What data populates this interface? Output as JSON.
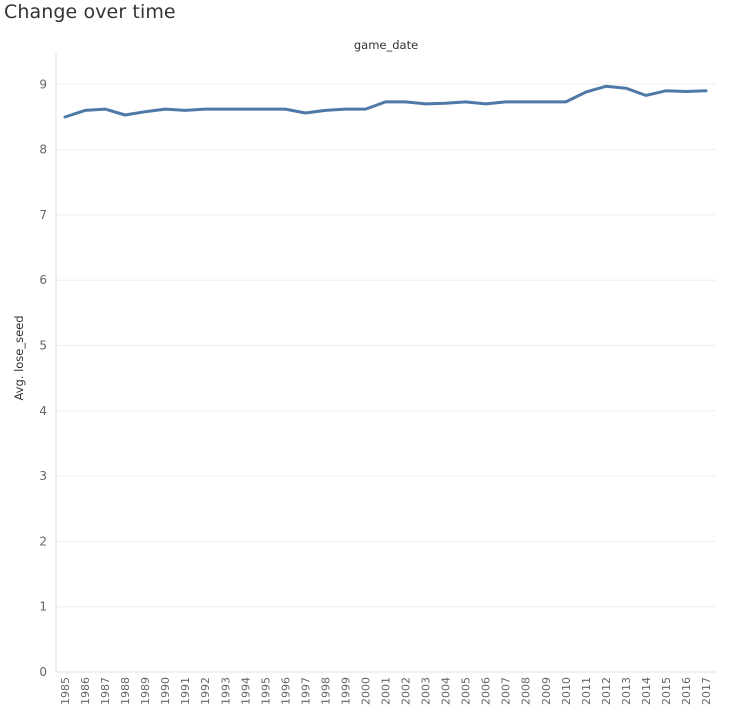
{
  "page": {
    "title": "Change over time"
  },
  "chart_data": {
    "type": "line",
    "title": "Change over time",
    "xlabel": "game_date",
    "ylabel": "Avg. lose_seed",
    "x": [
      1985,
      1986,
      1987,
      1988,
      1989,
      1990,
      1991,
      1992,
      1993,
      1994,
      1995,
      1996,
      1997,
      1998,
      1999,
      2000,
      2001,
      2002,
      2003,
      2004,
      2005,
      2006,
      2007,
      2008,
      2009,
      2010,
      2011,
      2012,
      2013,
      2014,
      2015,
      2016,
      2017
    ],
    "series": [
      {
        "name": "",
        "color": "#4e79a7",
        "values": [
          8.5,
          8.6,
          8.62,
          8.53,
          8.58,
          8.62,
          8.6,
          8.62,
          8.62,
          8.62,
          8.62,
          8.62,
          8.56,
          8.6,
          8.62,
          8.62,
          8.73,
          8.73,
          8.7,
          8.71,
          8.73,
          8.7,
          8.73,
          8.73,
          8.73,
          8.73,
          8.88,
          8.97,
          8.94,
          8.83,
          8.9,
          8.89,
          8.9
        ]
      }
    ],
    "ylim": [
      0,
      9.5
    ],
    "yticks": [
      0,
      1,
      2,
      3,
      4,
      5,
      6,
      7,
      8,
      9
    ],
    "grid": true,
    "legend": "none"
  }
}
